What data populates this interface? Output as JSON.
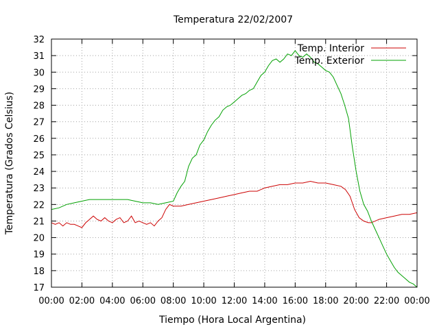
{
  "chart_data": {
    "type": "line",
    "title": "Temperatura 22/02/2007",
    "xlabel": "Tiempo (Hora Local Argentina)",
    "ylabel": "Temperatura (Grados Celsius)",
    "xlim": [
      0,
      24
    ],
    "ylim": [
      17,
      32
    ],
    "x_ticks": [
      "00:00",
      "02:00",
      "04:00",
      "06:00",
      "08:00",
      "10:00",
      "12:00",
      "14:00",
      "16:00",
      "18:00",
      "20:00",
      "22:00",
      "00:00"
    ],
    "y_ticks": [
      17,
      18,
      19,
      20,
      21,
      22,
      23,
      24,
      25,
      26,
      27,
      28,
      29,
      30,
      31,
      32
    ],
    "grid": true,
    "legend_position": "top-right",
    "series": [
      {
        "name": "Temp. Interior",
        "color": "#cc0000",
        "x": [
          0,
          0.25,
          0.5,
          0.75,
          1,
          1.25,
          1.5,
          1.75,
          2,
          2.25,
          2.5,
          2.75,
          3,
          3.25,
          3.5,
          3.75,
          4,
          4.25,
          4.5,
          4.75,
          5,
          5.25,
          5.5,
          5.75,
          6,
          6.25,
          6.5,
          6.75,
          7,
          7.25,
          7.5,
          7.75,
          8,
          8.5,
          9,
          9.5,
          10,
          10.5,
          11,
          11.5,
          12,
          12.5,
          13,
          13.5,
          14,
          14.5,
          15,
          15.5,
          16,
          16.5,
          17,
          17.5,
          18,
          18.5,
          19,
          19.3,
          19.6,
          19.9,
          20.2,
          20.5,
          20.8,
          21,
          21.5,
          22,
          22.5,
          23,
          23.5,
          24
        ],
        "y": [
          20.9,
          20.8,
          20.9,
          20.7,
          20.9,
          20.8,
          20.8,
          20.7,
          20.6,
          20.9,
          21.1,
          21.3,
          21.1,
          21.0,
          21.2,
          21.0,
          20.9,
          21.1,
          21.2,
          20.9,
          21.0,
          21.3,
          20.9,
          21.0,
          20.9,
          20.8,
          20.9,
          20.7,
          21.0,
          21.2,
          21.7,
          22.0,
          21.9,
          21.9,
          22.0,
          22.1,
          22.2,
          22.3,
          22.4,
          22.5,
          22.6,
          22.7,
          22.8,
          22.8,
          23.0,
          23.1,
          23.2,
          23.2,
          23.3,
          23.3,
          23.4,
          23.3,
          23.3,
          23.2,
          23.1,
          22.9,
          22.5,
          21.7,
          21.2,
          21.0,
          20.9,
          20.9,
          21.1,
          21.2,
          21.3,
          21.4,
          21.4,
          21.5
        ]
      },
      {
        "name": "Temp. Exterior",
        "color": "#00a000",
        "x": [
          0,
          0.5,
          1,
          1.5,
          2,
          2.5,
          3,
          3.5,
          4,
          4.5,
          5,
          5.5,
          6,
          6.5,
          7,
          7.5,
          8,
          8.25,
          8.5,
          8.75,
          9,
          9.25,
          9.5,
          9.75,
          10,
          10.25,
          10.5,
          10.75,
          11,
          11.25,
          11.5,
          11.75,
          12,
          12.25,
          12.5,
          12.75,
          13,
          13.25,
          13.5,
          13.75,
          14,
          14.25,
          14.5,
          14.75,
          15,
          15.25,
          15.5,
          15.75,
          16,
          16.25,
          16.5,
          16.75,
          17,
          17.25,
          17.5,
          17.75,
          18,
          18.25,
          18.5,
          18.75,
          19,
          19.25,
          19.5,
          19.75,
          20,
          20.25,
          20.5,
          20.75,
          21,
          21.25,
          21.5,
          21.75,
          22,
          22.25,
          22.5,
          22.75,
          23,
          23.25,
          23.5,
          23.75,
          24
        ],
        "y": [
          21.7,
          21.8,
          22.0,
          22.1,
          22.2,
          22.3,
          22.3,
          22.3,
          22.3,
          22.3,
          22.3,
          22.2,
          22.1,
          22.1,
          22.0,
          22.1,
          22.2,
          22.7,
          23.1,
          23.4,
          24.3,
          24.8,
          25.0,
          25.6,
          25.9,
          26.4,
          26.8,
          27.1,
          27.3,
          27.7,
          27.9,
          28.0,
          28.2,
          28.4,
          28.6,
          28.7,
          28.9,
          29.0,
          29.4,
          29.8,
          30.0,
          30.4,
          30.7,
          30.8,
          30.6,
          30.8,
          31.1,
          31.0,
          31.3,
          31.0,
          30.9,
          31.1,
          30.9,
          30.6,
          30.5,
          30.3,
          30.1,
          30.0,
          29.7,
          29.2,
          28.7,
          28.0,
          27.2,
          25.5,
          24.0,
          22.8,
          22.0,
          21.6,
          21.0,
          20.5,
          20.0,
          19.5,
          19.0,
          18.6,
          18.2,
          17.9,
          17.7,
          17.5,
          17.3,
          17.2,
          17.0
        ]
      }
    ]
  }
}
